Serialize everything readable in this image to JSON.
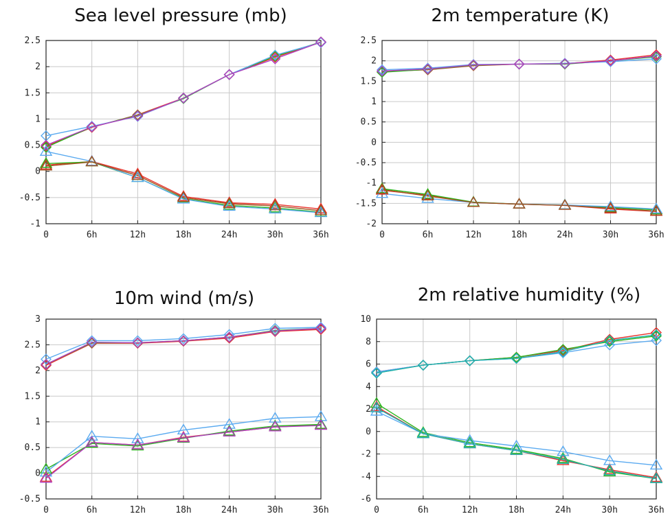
{
  "colors": {
    "red": "#e8302a",
    "green": "#2ab41c",
    "blue": "#5aaaf0",
    "purple": "#b040c0",
    "teal": "#20b0b0",
    "brown": "#a0501e"
  },
  "chart_data": [
    {
      "type": "line",
      "title": "Sea level pressure (mb)",
      "categories": [
        "0",
        "6h",
        "12h",
        "18h",
        "24h",
        "30h",
        "36h"
      ],
      "ylim": [
        -1,
        2.5
      ],
      "yticks": [
        "2.5",
        "2",
        "1.5",
        "1",
        "0.5",
        "0",
        "-0.5",
        "-1"
      ],
      "grid": true,
      "series": [
        {
          "values": [
            0.48,
            0.84,
            1.08,
            1.4,
            1.85,
            2.18,
            2.47
          ],
          "color": "#e8302a",
          "marker": "diamond"
        },
        {
          "values": [
            0.46,
            0.85,
            1.07,
            1.39,
            1.85,
            2.2,
            2.47
          ],
          "color": "#2ab41c",
          "marker": "diamond"
        },
        {
          "values": [
            0.68,
            0.86,
            1.05,
            1.4,
            1.85,
            2.22,
            2.46
          ],
          "color": "#5aaaf0",
          "marker": "diamond"
        },
        {
          "values": [
            0.5,
            0.85,
            1.06,
            1.4,
            1.85,
            2.15,
            2.47
          ],
          "color": "#b040c0",
          "marker": "diamond"
        },
        {
          "values": [
            0.12,
            0.19,
            -0.05,
            -0.48,
            -0.6,
            -0.63,
            -0.72
          ],
          "color": "#e8302a",
          "marker": "triangle"
        },
        {
          "values": [
            0.15,
            0.18,
            -0.12,
            -0.52,
            -0.65,
            -0.7,
            -0.78
          ],
          "color": "#2ab41c",
          "marker": "triangle"
        },
        {
          "values": [
            0.38,
            0.19,
            -0.12,
            -0.53,
            -0.67,
            -0.72,
            -0.79
          ],
          "color": "#5aaaf0",
          "marker": "triangle"
        },
        {
          "values": [
            0.1,
            0.18,
            -0.08,
            -0.5,
            -0.62,
            -0.66,
            -0.75
          ],
          "color": "#a0501e",
          "marker": "triangle"
        }
      ]
    },
    {
      "type": "line",
      "title": "2m temperature (K)",
      "categories": [
        "0",
        "6h",
        "12h",
        "18h",
        "24h",
        "30h",
        "36h"
      ],
      "ylim": [
        -2,
        2.5
      ],
      "yticks": [
        "2.5",
        "2",
        "1.5",
        "1",
        "0.5",
        "0",
        "-0.5",
        "-1",
        "-1.5",
        "-2"
      ],
      "grid": true,
      "series": [
        {
          "values": [
            1.74,
            1.78,
            1.88,
            1.92,
            1.93,
            2.02,
            2.15
          ],
          "color": "#e8302a",
          "marker": "diamond"
        },
        {
          "values": [
            1.72,
            1.79,
            1.89,
            1.92,
            1.92,
            2.0,
            2.1
          ],
          "color": "#2ab41c",
          "marker": "diamond"
        },
        {
          "values": [
            1.78,
            1.82,
            1.91,
            1.92,
            1.94,
            1.98,
            2.05
          ],
          "color": "#5aaaf0",
          "marker": "diamond"
        },
        {
          "values": [
            1.75,
            1.8,
            1.9,
            1.92,
            1.93,
            2.0,
            2.12
          ],
          "color": "#b040c0",
          "marker": "diamond"
        },
        {
          "values": [
            -1.18,
            -1.3,
            -1.48,
            -1.52,
            -1.55,
            -1.64,
            -1.7
          ],
          "color": "#e8302a",
          "marker": "triangle"
        },
        {
          "values": [
            -1.14,
            -1.28,
            -1.47,
            -1.52,
            -1.54,
            -1.6,
            -1.66
          ],
          "color": "#2ab41c",
          "marker": "triangle"
        },
        {
          "values": [
            -1.26,
            -1.38,
            -1.48,
            -1.52,
            -1.54,
            -1.58,
            -1.64
          ],
          "color": "#5aaaf0",
          "marker": "triangle"
        },
        {
          "values": [
            -1.16,
            -1.32,
            -1.48,
            -1.52,
            -1.55,
            -1.62,
            -1.69
          ],
          "color": "#a0501e",
          "marker": "triangle"
        }
      ]
    },
    {
      "type": "line",
      "title": "10m wind (m/s)",
      "categories": [
        "0",
        "6h",
        "12h",
        "18h",
        "24h",
        "30h",
        "36h"
      ],
      "ylim": [
        -0.5,
        3
      ],
      "yticks": [
        "3",
        "2.5",
        "2",
        "1.5",
        "1",
        "0.5",
        "0",
        "-0.5"
      ],
      "grid": true,
      "series": [
        {
          "values": [
            2.1,
            2.53,
            2.53,
            2.57,
            2.63,
            2.76,
            2.8
          ],
          "color": "#e8302a",
          "marker": "diamond"
        },
        {
          "values": [
            2.12,
            2.54,
            2.54,
            2.58,
            2.65,
            2.78,
            2.82
          ],
          "color": "#2ab41c",
          "marker": "diamond"
        },
        {
          "values": [
            2.22,
            2.58,
            2.58,
            2.62,
            2.7,
            2.82,
            2.84
          ],
          "color": "#5aaaf0",
          "marker": "diamond"
        },
        {
          "values": [
            2.12,
            2.55,
            2.54,
            2.58,
            2.65,
            2.77,
            2.82
          ],
          "color": "#b040c0",
          "marker": "diamond"
        },
        {
          "values": [
            -0.08,
            0.6,
            0.55,
            0.7,
            0.8,
            0.9,
            0.94
          ],
          "color": "#e8302a",
          "marker": "triangle"
        },
        {
          "values": [
            0.08,
            0.58,
            0.53,
            0.68,
            0.82,
            0.92,
            0.95
          ],
          "color": "#2ab41c",
          "marker": "triangle"
        },
        {
          "values": [
            0.02,
            0.72,
            0.67,
            0.84,
            0.95,
            1.07,
            1.1
          ],
          "color": "#5aaaf0",
          "marker": "triangle"
        },
        {
          "values": [
            -0.1,
            0.6,
            0.55,
            0.69,
            0.8,
            0.9,
            0.93
          ],
          "color": "#b040c0",
          "marker": "triangle"
        }
      ]
    },
    {
      "type": "line",
      "title": "2m relative humidity (%)",
      "categories": [
        "0",
        "6h",
        "12h",
        "18h",
        "24h",
        "30h",
        "36h"
      ],
      "ylim": [
        -6,
        10
      ],
      "yticks": [
        "10",
        "8",
        "6",
        "4",
        "2",
        "0",
        "-2",
        "-4",
        "-6"
      ],
      "grid": true,
      "series": [
        {
          "values": [
            5.3,
            5.9,
            6.3,
            6.6,
            7.2,
            8.2,
            8.8
          ],
          "color": "#e8302a",
          "marker": "diamond"
        },
        {
          "values": [
            5.2,
            5.9,
            6.3,
            6.6,
            7.3,
            8.0,
            8.5
          ],
          "color": "#2ab41c",
          "marker": "diamond"
        },
        {
          "values": [
            5.3,
            5.9,
            6.3,
            6.5,
            7.0,
            7.7,
            8.1
          ],
          "color": "#5aaaf0",
          "marker": "diamond"
        },
        {
          "values": [
            5.2,
            5.9,
            6.3,
            6.5,
            7.1,
            8.1,
            8.6
          ],
          "color": "#20b0b0",
          "marker": "diamond"
        },
        {
          "values": [
            2.2,
            -0.2,
            -1.1,
            -1.7,
            -2.6,
            -3.4,
            -4.1
          ],
          "color": "#e8302a",
          "marker": "triangle"
        },
        {
          "values": [
            2.5,
            -0.1,
            -1.0,
            -1.6,
            -2.4,
            -3.6,
            -4.2
          ],
          "color": "#2ab41c",
          "marker": "triangle"
        },
        {
          "values": [
            1.8,
            -0.2,
            -0.8,
            -1.3,
            -1.8,
            -2.6,
            -3.0
          ],
          "color": "#5aaaf0",
          "marker": "triangle"
        },
        {
          "values": [
            2.1,
            -0.2,
            -1.1,
            -1.7,
            -2.5,
            -3.5,
            -4.2
          ],
          "color": "#20b0b0",
          "marker": "triangle"
        }
      ]
    }
  ]
}
